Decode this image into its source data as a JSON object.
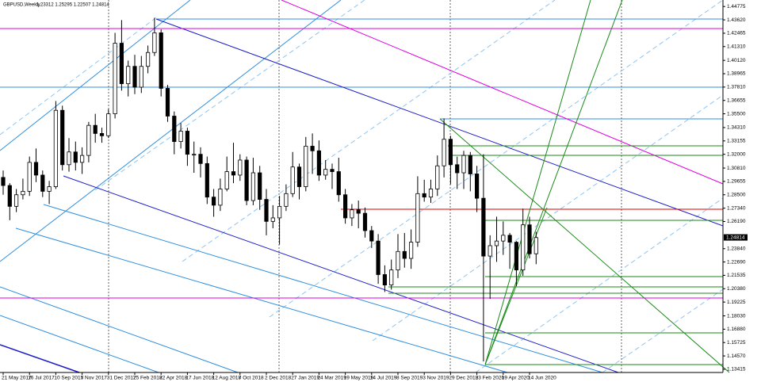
{
  "chart_data": {
    "type": "candlestick",
    "title": "GBPUSD,Weekly",
    "info": "1.23312 1.25295 1.22507 1.24814",
    "categories": [
      "21 May 2017",
      null,
      null,
      null,
      "16 Jul 2017",
      null,
      null,
      null,
      "10 Sep 2017",
      null,
      null,
      null,
      "5 Nov 2017",
      null,
      null,
      null,
      "31 Dec 2017",
      null,
      null,
      null,
      "25 Feb 2018",
      null,
      null,
      null,
      "22 Apr 2018",
      null,
      null,
      null,
      "17 Jun 2018",
      null,
      null,
      null,
      "12 Aug 2018",
      null,
      null,
      null,
      "7 Oct 2018",
      null,
      null,
      null,
      "2 Dec 2018",
      null,
      null,
      null,
      "27 Jan 2019",
      null,
      null,
      null,
      "24 Mar 2019",
      null,
      null,
      null,
      "19 May 2019",
      null,
      null,
      null,
      "14 Jul 2019",
      null,
      null,
      null,
      "8 Sep 2019",
      null,
      null,
      null,
      "3 Nov 2019",
      null,
      null,
      null,
      "29 Dec 2019",
      null,
      null,
      null,
      "23 Feb 2020",
      null,
      null,
      null,
      "19 Apr 2020",
      null,
      null,
      null,
      "14 Jun 2020",
      null
    ],
    "open": [
      1.3,
      1.293,
      1.275,
      1.285,
      1.288,
      1.313,
      1.302,
      1.288,
      1.292,
      1.358,
      1.311,
      1.322,
      1.313,
      1.319,
      1.345,
      1.338,
      1.336,
      1.355,
      1.416,
      1.381,
      1.396,
      1.378,
      1.396,
      1.408,
      1.425,
      1.377,
      1.353,
      1.331,
      1.34,
      1.32,
      1.32,
      1.312,
      1.283,
      1.276,
      1.29,
      1.305,
      1.302,
      1.315,
      1.28,
      1.304,
      1.281,
      1.262,
      1.265,
      1.275,
      1.286,
      1.309,
      1.292,
      1.327,
      1.323,
      1.302,
      1.307,
      1.305,
      1.285,
      1.265,
      1.272,
      1.269,
      1.254,
      1.245,
      1.216,
      1.207,
      1.22,
      1.236,
      1.23,
      1.244,
      1.286,
      1.283,
      1.29,
      1.31,
      1.333,
      1.311,
      1.304,
      1.319,
      1.303,
      1.282,
      1.232,
      1.241,
      1.245,
      1.25,
      1.244,
      1.22,
      1.259,
      1.234
    ],
    "high": [
      1.306,
      1.295,
      1.29,
      1.299,
      1.318,
      1.325,
      1.306,
      1.297,
      1.366,
      1.362,
      1.334,
      1.331,
      1.326,
      1.348,
      1.355,
      1.343,
      1.359,
      1.425,
      1.436,
      1.401,
      1.406,
      1.405,
      1.414,
      1.438,
      1.428,
      1.38,
      1.357,
      1.347,
      1.343,
      1.331,
      1.326,
      1.318,
      1.29,
      1.299,
      1.318,
      1.33,
      1.32,
      1.318,
      1.317,
      1.31,
      1.29,
      1.276,
      1.284,
      1.294,
      1.322,
      1.312,
      1.335,
      1.338,
      1.332,
      1.315,
      1.312,
      1.317,
      1.29,
      1.277,
      1.28,
      1.274,
      1.258,
      1.251,
      1.224,
      1.229,
      1.251,
      1.252,
      1.255,
      1.301,
      1.298,
      1.298,
      1.319,
      1.351,
      1.336,
      1.318,
      1.323,
      1.322,
      1.31,
      1.32,
      1.25,
      1.266,
      1.262,
      1.252,
      1.245,
      1.273,
      1.266,
      1.253
    ],
    "low": [
      1.285,
      1.263,
      1.27,
      1.281,
      1.284,
      1.296,
      1.283,
      1.277,
      1.29,
      1.306,
      1.305,
      1.306,
      1.303,
      1.313,
      1.33,
      1.33,
      1.334,
      1.351,
      1.375,
      1.37,
      1.372,
      1.373,
      1.39,
      1.405,
      1.37,
      1.348,
      1.32,
      1.325,
      1.31,
      1.304,
      1.3,
      1.277,
      1.266,
      1.271,
      1.288,
      1.295,
      1.297,
      1.276,
      1.276,
      1.272,
      1.25,
      1.256,
      1.242,
      1.271,
      1.283,
      1.281,
      1.288,
      1.303,
      1.297,
      1.298,
      1.29,
      1.279,
      1.26,
      1.258,
      1.256,
      1.248,
      1.239,
      1.208,
      1.201,
      1.203,
      1.213,
      1.222,
      1.221,
      1.24,
      1.279,
      1.278,
      1.284,
      1.3,
      1.294,
      1.29,
      1.29,
      1.288,
      1.27,
      1.141,
      1.195,
      1.227,
      1.233,
      1.221,
      1.206,
      1.215,
      1.23,
      1.225
    ],
    "close": [
      1.293,
      1.275,
      1.285,
      1.288,
      1.313,
      1.302,
      1.288,
      1.292,
      1.358,
      1.311,
      1.322,
      1.313,
      1.319,
      1.345,
      1.338,
      1.336,
      1.355,
      1.416,
      1.381,
      1.396,
      1.378,
      1.396,
      1.408,
      1.425,
      1.377,
      1.353,
      1.331,
      1.34,
      1.32,
      1.32,
      1.312,
      1.283,
      1.276,
      1.29,
      1.305,
      1.302,
      1.315,
      1.28,
      1.304,
      1.281,
      1.262,
      1.265,
      1.275,
      1.286,
      1.309,
      1.292,
      1.327,
      1.323,
      1.302,
      1.307,
      1.305,
      1.285,
      1.265,
      1.272,
      1.269,
      1.254,
      1.245,
      1.216,
      1.207,
      1.22,
      1.236,
      1.23,
      1.244,
      1.286,
      1.283,
      1.29,
      1.31,
      1.333,
      1.311,
      1.304,
      1.319,
      1.303,
      1.282,
      1.232,
      1.241,
      1.245,
      1.25,
      1.244,
      1.22,
      1.259,
      1.234,
      1.248
    ],
    "last_price": 1.24814,
    "ylim": [
      1.13,
      1.452
    ],
    "yticks": [
      1.44775,
      {
        "value": 1.4362,
        "label": "1.43620"
      },
      1.42465,
      {
        "value": 1.4131,
        "label": "1.41310"
      },
      {
        "value": 1.4012,
        "label": "1.40120"
      },
      1.38965,
      {
        "value": 1.3781,
        "label": "1.37810"
      },
      1.36655,
      {
        "value": 1.355,
        "label": "1.35500"
      },
      {
        "value": 1.3431,
        "label": "1.34310"
      },
      1.33155,
      {
        "value": 1.32,
        "label": "1.32000"
      },
      {
        "value": 1.3081,
        "label": "1.30810"
      },
      1.29655,
      {
        "value": 1.285,
        "label": "1.28500"
      },
      {
        "value": 1.2734,
        "label": "1.27340"
      },
      {
        "value": 1.2619,
        "label": "1.26190"
      },
      {
        "value": 1.2384,
        "label": "1.23840"
      },
      {
        "value": 1.2269,
        "label": "1.22690"
      },
      1.21535,
      {
        "value": 1.2038,
        "label": "1.20380"
      },
      1.19225,
      {
        "value": 1.1803,
        "label": "1.18030"
      },
      {
        "value": 1.1688,
        "label": "1.16880"
      },
      1.15725,
      {
        "value": 1.1457,
        "label": "1.14570"
      },
      1.13415
    ]
  }
}
